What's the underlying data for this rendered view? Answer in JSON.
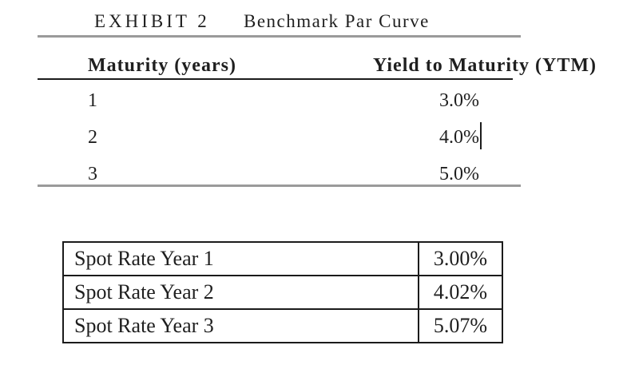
{
  "exhibit": {
    "label": "EXHIBIT 2",
    "title": "Benchmark Par Curve",
    "columns": {
      "maturity": "Maturity (years)",
      "ytm": "Yield to Maturity (YTM)"
    },
    "rows": [
      {
        "maturity": "1",
        "ytm": "3.0%"
      },
      {
        "maturity": "2",
        "ytm": "4.0%"
      },
      {
        "maturity": "3",
        "ytm": "5.0%"
      }
    ]
  },
  "spot_table": {
    "rows": [
      {
        "label": "Spot Rate Year 1",
        "value": "3.00%"
      },
      {
        "label": "Spot Rate Year 2",
        "value": "4.02%"
      },
      {
        "label": "Spot Rate Year 3",
        "value": "5.07%"
      }
    ]
  },
  "chart_data": {
    "type": "table",
    "title": "EXHIBIT 2 Benchmark Par Curve",
    "categories": [
      1,
      2,
      3
    ],
    "series": [
      {
        "name": "Yield to Maturity (YTM) %",
        "values": [
          3.0,
          4.0,
          5.0
        ]
      },
      {
        "name": "Spot Rate %",
        "values": [
          3.0,
          4.02,
          5.07
        ]
      }
    ]
  },
  "colors": {
    "text": "#1f1f1f",
    "rule_gray": "#9a9a9a",
    "border_black": "#1b1b1b",
    "background": "#ffffff"
  }
}
